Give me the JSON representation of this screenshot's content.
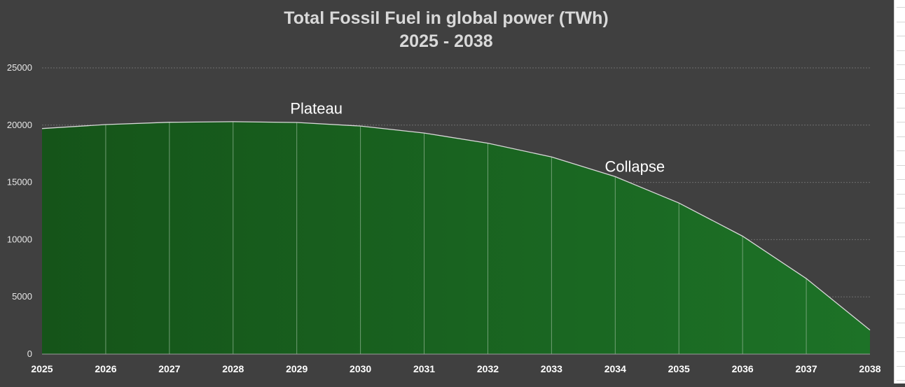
{
  "chart_data": {
    "type": "area",
    "title": "Total Fossil Fuel in global power (TWh)",
    "subtitle": "2025 - 2038",
    "x": [
      "2025",
      "2026",
      "2027",
      "2028",
      "2029",
      "2030",
      "2031",
      "2032",
      "2033",
      "2034",
      "2035",
      "2036",
      "2037",
      "2038"
    ],
    "values": [
      19700,
      20050,
      20250,
      20300,
      20230,
      19920,
      19310,
      18420,
      17220,
      15500,
      13200,
      10300,
      6600,
      2100
    ],
    "ylim": [
      0,
      25000
    ],
    "yticks": [
      "0",
      "5000",
      "10000",
      "15000",
      "20000",
      "25000"
    ],
    "grid": true,
    "legend": "none",
    "colors": {
      "fill_dark": "#155419",
      "fill_light": "#1d7227",
      "line": "#d9d9d9",
      "background": "#404040"
    },
    "annotations": [
      {
        "text": "Plateau",
        "x": "2029",
        "y": 21500
      },
      {
        "text": "Collapse",
        "x": "2034",
        "y": 16400
      }
    ]
  }
}
